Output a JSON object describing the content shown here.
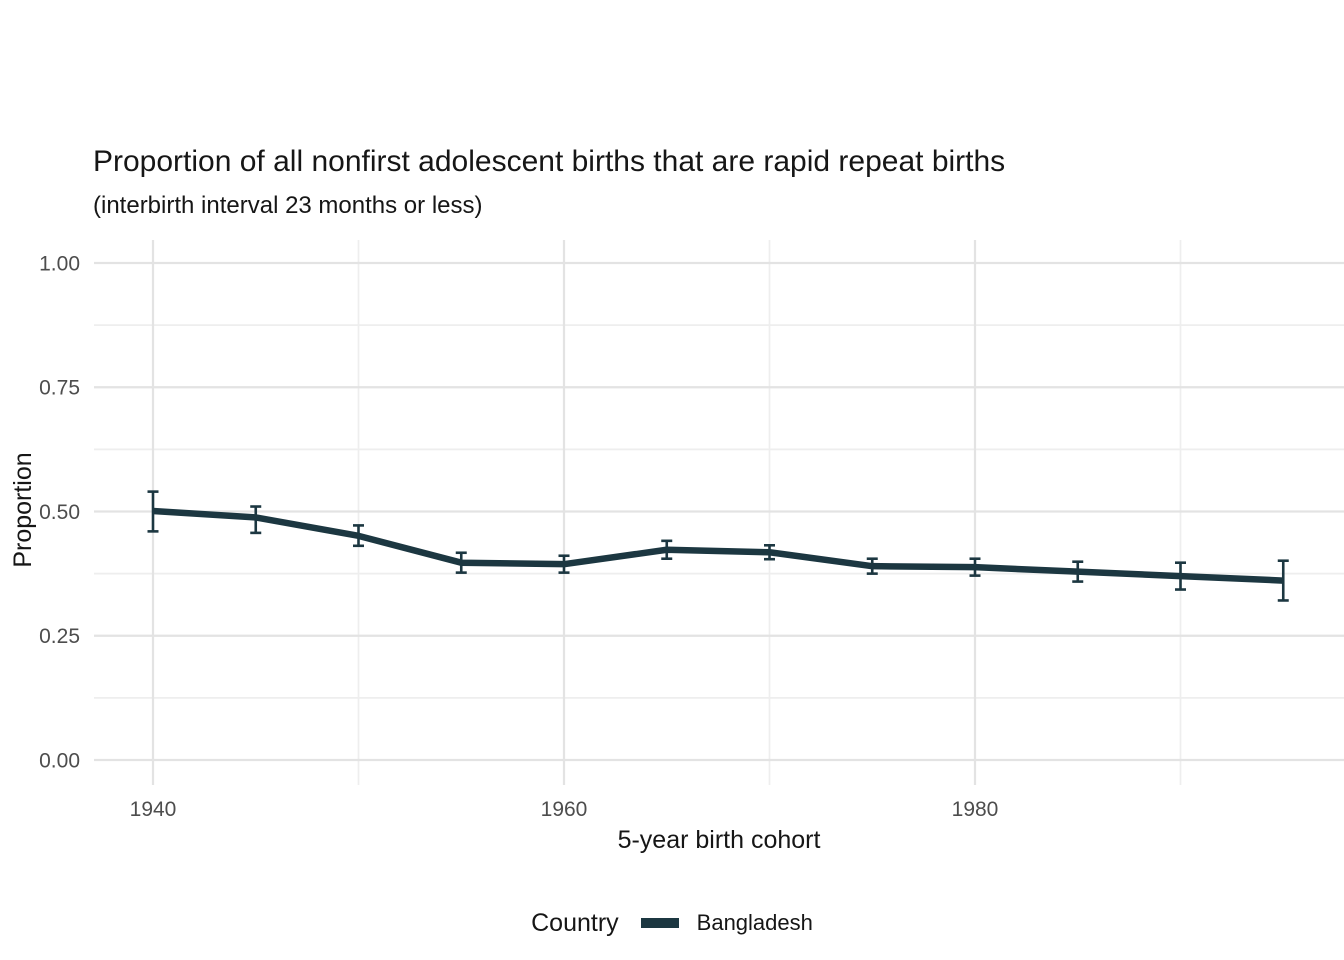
{
  "chart_data": {
    "type": "line",
    "title": "Proportion of all nonfirst adolescent births that are rapid repeat births",
    "subtitle": "(interbirth interval 23 months or less)",
    "xlabel": "5-year birth cohort",
    "ylabel": "Proportion",
    "x": [
      1940,
      1945,
      1950,
      1955,
      1960,
      1965,
      1970,
      1975,
      1980,
      1985,
      1990,
      1995
    ],
    "series": [
      {
        "name": "Bangladesh",
        "color": "#1c3741",
        "values": [
          0.501,
          0.488,
          0.451,
          0.397,
          0.394,
          0.423,
          0.418,
          0.39,
          0.388,
          0.379,
          0.37,
          0.361
        ],
        "ci_lower": [
          0.46,
          0.457,
          0.431,
          0.377,
          0.377,
          0.405,
          0.404,
          0.375,
          0.371,
          0.359,
          0.343,
          0.321
        ],
        "ci_upper": [
          0.54,
          0.51,
          0.472,
          0.417,
          0.411,
          0.441,
          0.432,
          0.405,
          0.405,
          0.399,
          0.397,
          0.401
        ]
      }
    ],
    "error_bars": true,
    "x_ticks": {
      "major": [
        1940,
        1960,
        1980
      ],
      "labels": [
        "1940",
        "1960",
        "1980"
      ],
      "minor": [
        1950,
        1970,
        1990
      ]
    },
    "y_ticks": {
      "major": [
        0,
        0.25,
        0.5,
        0.75,
        1.0
      ],
      "labels": [
        "0.00",
        "0.25",
        "0.50",
        "0.75",
        "1.00"
      ],
      "minor": [
        0.125,
        0.375,
        0.625,
        0.875
      ]
    },
    "xlim": [
      1937.2,
      1998.0
    ],
    "ylim": [
      -0.05,
      1.05
    ],
    "grid": true,
    "legend": {
      "title": "Country",
      "position": "bottom",
      "entries": [
        {
          "label": "Bangladesh",
          "color": "#1c3741"
        }
      ]
    }
  },
  "colors": {
    "line": "#1c3741",
    "grid_major": "#e3e3e3",
    "grid_minor": "#eeeeee",
    "tick_label": "#4d4d4d",
    "text": "#161616",
    "background": "#ffffff"
  }
}
